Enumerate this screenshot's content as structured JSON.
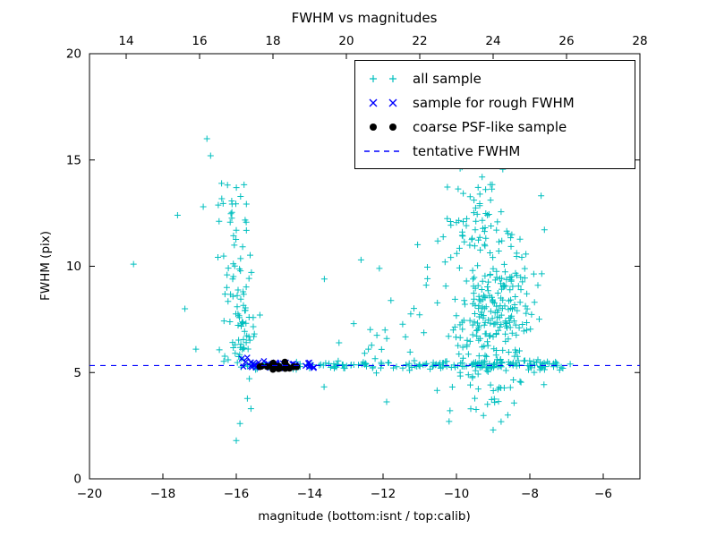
{
  "chart_data": {
    "type": "scatter",
    "title": "FWHM vs magnitudes",
    "xlabel": "magnitude (bottom:isnt / top:calib)",
    "ylabel": "FWHM (pix)",
    "xlim": [
      -20,
      -5
    ],
    "ylim": [
      0,
      20
    ],
    "top_xlim": [
      13,
      28
    ],
    "grid": false,
    "x_ticks": {
      "values": [
        -20,
        -18,
        -16,
        -14,
        -12,
        -10,
        -8,
        -6
      ],
      "labels": [
        "−20",
        "−18",
        "−16",
        "−14",
        "−12",
        "−10",
        "−8",
        "−6"
      ]
    },
    "top_ticks": {
      "values": [
        14,
        16,
        18,
        20,
        22,
        24,
        26,
        28
      ],
      "labels": [
        "14",
        "16",
        "18",
        "20",
        "22",
        "24",
        "26",
        "28"
      ]
    },
    "y_ticks": {
      "values": [
        0,
        5,
        10,
        15,
        20
      ],
      "labels": [
        "0",
        "5",
        "10",
        "15",
        "20"
      ]
    },
    "tentative_fwhm": 5.33,
    "legend": {
      "position": "upper right",
      "entries": [
        {
          "label": "all sample",
          "marker": "plus",
          "color": "#00bfbf"
        },
        {
          "label": "sample for rough FWHM",
          "marker": "x",
          "color": "#0000ff"
        },
        {
          "label": "coarse PSF-like sample",
          "marker": "dot",
          "color": "#000000"
        },
        {
          "label": "tentative FWHM",
          "marker": "dashed-line",
          "color": "#0000ff"
        }
      ]
    },
    "series": [
      {
        "id": "all_sample",
        "name": "all sample",
        "marker": "plus",
        "color": "#00bfbf",
        "clusters": [
          {
            "shape": "gauss",
            "n": 45,
            "cx": -15.9,
            "cy": 9.3,
            "sx": 0.22,
            "sy": 1.9
          },
          {
            "shape": "gauss",
            "n": 45,
            "cx": -15.75,
            "cy": 6.4,
            "sx": 0.28,
            "sy": 0.8
          },
          {
            "shape": "gauss",
            "n": 14,
            "cx": -16.15,
            "cy": 12.8,
            "sx": 0.28,
            "sy": 1.1
          },
          {
            "shape": "band",
            "n": 70,
            "x0": -15.7,
            "x1": -11.3,
            "cy": 5.35,
            "sy": 0.1
          },
          {
            "shape": "band",
            "n": 110,
            "x0": -11.3,
            "x1": -7.1,
            "cy": 5.35,
            "sy": 0.13
          },
          {
            "shape": "gauss",
            "n": 190,
            "cx": -9.0,
            "cy": 7.6,
            "sx": 0.55,
            "sy": 1.5
          },
          {
            "shape": "gauss",
            "n": 55,
            "cx": -9.5,
            "cy": 12.3,
            "sx": 0.45,
            "sy": 1.2
          },
          {
            "shape": "gauss",
            "n": 45,
            "cx": -8.4,
            "cy": 9.2,
            "sx": 0.4,
            "sy": 1.6
          },
          {
            "shape": "gauss",
            "n": 28,
            "cx": -9.3,
            "cy": 4.1,
            "sx": 0.6,
            "sy": 0.55
          },
          {
            "shape": "gauss",
            "n": 22,
            "cx": -11.4,
            "cy": 7.2,
            "sx": 0.7,
            "sy": 1.3
          },
          {
            "shape": "gauss",
            "n": 12,
            "cx": -10.1,
            "cy": 10.5,
            "sx": 0.5,
            "sy": 1.0
          }
        ],
        "points": [
          [
            -18.8,
            10.1
          ],
          [
            -17.6,
            12.4
          ],
          [
            -17.4,
            8.0
          ],
          [
            -17.1,
            6.1
          ],
          [
            -16.9,
            12.8
          ],
          [
            -16.8,
            16.0
          ],
          [
            -16.7,
            15.2
          ],
          [
            -16.4,
            13.9
          ],
          [
            -16.0,
            1.8
          ],
          [
            -15.9,
            2.6
          ],
          [
            -15.6,
            3.3
          ],
          [
            -13.6,
            9.4
          ],
          [
            -13.2,
            6.4
          ],
          [
            -12.8,
            7.3
          ],
          [
            -12.6,
            10.3
          ],
          [
            -12.4,
            6.1
          ],
          [
            -12.1,
            9.9
          ],
          [
            -11.9,
            6.6
          ],
          [
            -10.2,
            2.7
          ],
          [
            -9.9,
            14.6
          ],
          [
            -9.5,
            15.0
          ],
          [
            -9.3,
            14.2
          ],
          [
            -9.0,
            2.3
          ],
          [
            -8.6,
            3.0
          ],
          [
            -7.3,
            5.5
          ],
          [
            -7.1,
            5.2
          ],
          [
            -6.9,
            5.4
          ]
        ]
      },
      {
        "id": "rough_fwhm",
        "name": "sample for rough FWHM",
        "marker": "x",
        "color": "#0000ff",
        "clusters": [
          {
            "shape": "band",
            "n": 26,
            "x0": -15.9,
            "x1": -13.85,
            "cy": 5.38,
            "sy": 0.12
          },
          {
            "shape": "gauss",
            "n": 8,
            "cx": -14.0,
            "cy": 5.35,
            "sx": 0.08,
            "sy": 0.1
          }
        ],
        "points": [
          [
            -15.85,
            5.65
          ],
          [
            -15.75,
            5.5
          ],
          [
            -15.7,
            5.7
          ]
        ]
      },
      {
        "id": "psf_like",
        "name": "coarse PSF-like sample",
        "marker": "dot",
        "color": "#000000",
        "clusters": [
          {
            "shape": "band",
            "n": 15,
            "x0": -15.5,
            "x1": -14.35,
            "cy": 5.3,
            "sy": 0.07
          }
        ],
        "points": [
          [
            -15.0,
            5.15
          ],
          [
            -14.85,
            5.18
          ]
        ]
      }
    ]
  }
}
